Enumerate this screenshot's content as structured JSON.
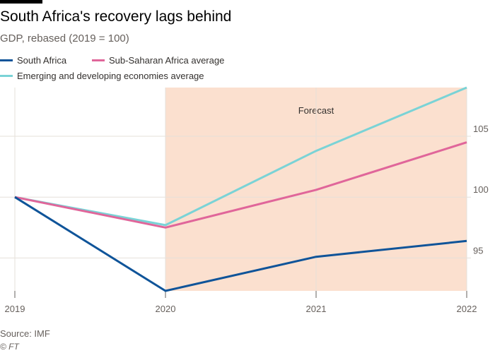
{
  "header": {
    "title": "South Africa's recovery lags behind",
    "subtitle": "GDP, rebased (2019 = 100)"
  },
  "footer": {
    "source": "Source: IMF",
    "credit": "© FT"
  },
  "colors": {
    "south_africa": "#0f5499",
    "sub_saharan": "#e0669a",
    "emerging": "#7ad3d6",
    "forecast_band": "#fbe0cf",
    "grid": "#e6e0da",
    "axis_text": "#66605c"
  },
  "chart_data": {
    "type": "line",
    "title": "South Africa's recovery lags behind",
    "subtitle": "GDP, rebased (2019 = 100)",
    "x": [
      2019,
      2020,
      2021,
      2022
    ],
    "x_tick_labels": [
      "2019",
      "2020",
      "2021",
      "2022"
    ],
    "y_ticks": [
      95,
      100,
      105
    ],
    "y_tick_labels": [
      "95",
      "100",
      "105"
    ],
    "ylim": [
      92.3,
      109.0
    ],
    "xlim": [
      2019,
      2022
    ],
    "grid": true,
    "y_axis_side": "right",
    "legend_position": "top-left",
    "forecast": {
      "start": 2020,
      "end": 2022,
      "label": "Forecast"
    },
    "series": [
      {
        "name": "South Africa",
        "color": "#0f5499",
        "values": [
          100,
          92.3,
          95.1,
          96.4
        ]
      },
      {
        "name": "Sub-Saharan Africa average",
        "color": "#e0669a",
        "values": [
          100,
          97.5,
          100.6,
          104.5
        ]
      },
      {
        "name": "Emerging and developing economies average",
        "color": "#7ad3d6",
        "values": [
          100,
          97.7,
          103.8,
          109.0
        ]
      }
    ]
  }
}
